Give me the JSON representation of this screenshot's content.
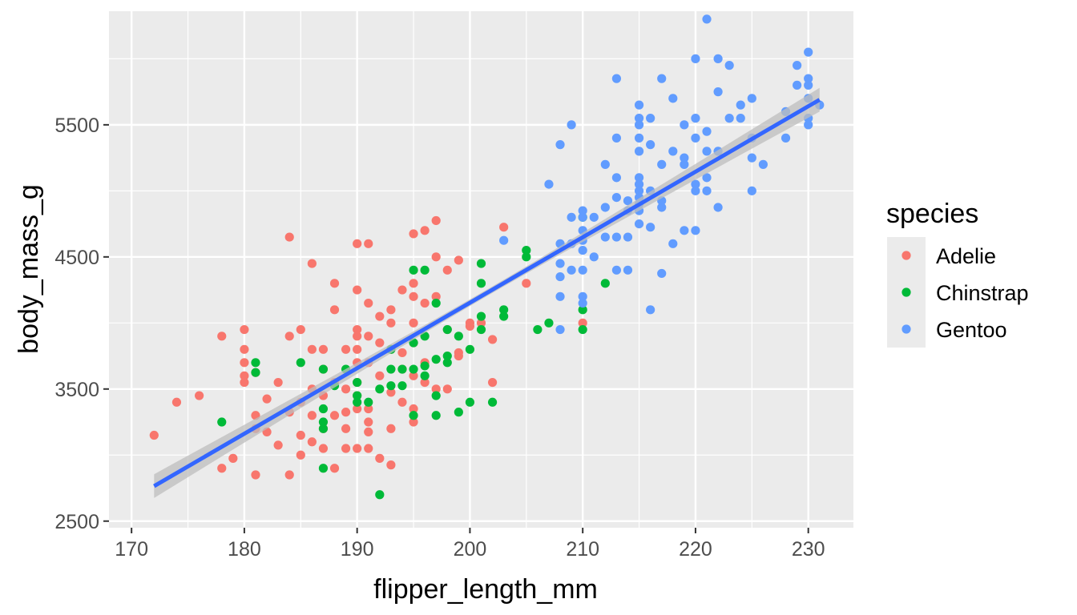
{
  "chart_data": {
    "type": "scatter",
    "xlabel": "flipper_length_mm",
    "ylabel": "body_mass_g",
    "xlim": [
      168,
      234
    ],
    "ylim": [
      2450,
      6360
    ],
    "x_ticks": [
      170,
      180,
      190,
      200,
      210,
      220,
      230
    ],
    "y_ticks": [
      2500,
      3500,
      4500,
      5500
    ],
    "grid": true,
    "legend": {
      "title": "species",
      "position": "right"
    },
    "colors": {
      "Adelie": "#F8766D",
      "Chinstrap": "#00BA38",
      "Gentoo": "#619CFF",
      "trend": "#3366FF",
      "band": "#bdbdbd",
      "panel": "#ebebeb"
    },
    "series": [
      {
        "name": "Adelie",
        "points": [
          [
            172,
            3150
          ],
          [
            174,
            3400
          ],
          [
            176,
            3450
          ],
          [
            178,
            3900
          ],
          [
            178,
            2900
          ],
          [
            179,
            2975
          ],
          [
            180,
            3950
          ],
          [
            180,
            3800
          ],
          [
            180,
            3700
          ],
          [
            180,
            3600
          ],
          [
            180,
            3550
          ],
          [
            181,
            3300
          ],
          [
            181,
            3200
          ],
          [
            181,
            2850
          ],
          [
            181,
            3625
          ],
          [
            182,
            3425
          ],
          [
            182,
            3175
          ],
          [
            183,
            3550
          ],
          [
            183,
            3075
          ],
          [
            184,
            4650
          ],
          [
            184,
            3900
          ],
          [
            184,
            3325
          ],
          [
            184,
            2850
          ],
          [
            185,
            3950
          ],
          [
            185,
            3400
          ],
          [
            185,
            3150
          ],
          [
            185,
            3000
          ],
          [
            186,
            4450
          ],
          [
            186,
            3800
          ],
          [
            186,
            3500
          ],
          [
            186,
            3300
          ],
          [
            186,
            3100
          ],
          [
            187,
            3800
          ],
          [
            187,
            3650
          ],
          [
            187,
            3450
          ],
          [
            187,
            3200
          ],
          [
            187,
            3050
          ],
          [
            188,
            4300
          ],
          [
            188,
            4100
          ],
          [
            188,
            3550
          ],
          [
            188,
            3300
          ],
          [
            188,
            2900
          ],
          [
            189,
            3800
          ],
          [
            189,
            3500
          ],
          [
            189,
            3325
          ],
          [
            189,
            3200
          ],
          [
            189,
            3050
          ],
          [
            190,
            4600
          ],
          [
            190,
            4250
          ],
          [
            190,
            3950
          ],
          [
            190,
            3900
          ],
          [
            190,
            3800
          ],
          [
            190,
            3700
          ],
          [
            190,
            3550
          ],
          [
            190,
            3450
          ],
          [
            190,
            3350
          ],
          [
            190,
            3050
          ],
          [
            191,
            4600
          ],
          [
            191,
            4150
          ],
          [
            191,
            3900
          ],
          [
            191,
            3700
          ],
          [
            191,
            3350
          ],
          [
            191,
            3250
          ],
          [
            191,
            3050
          ],
          [
            191,
            3175
          ],
          [
            192,
            4050
          ],
          [
            192,
            3850
          ],
          [
            192,
            3600
          ],
          [
            192,
            2975
          ],
          [
            193,
            4100
          ],
          [
            193,
            4000
          ],
          [
            193,
            3800
          ],
          [
            193,
            3475
          ],
          [
            193,
            3200
          ],
          [
            193,
            2925
          ],
          [
            194,
            4250
          ],
          [
            194,
            3775
          ],
          [
            194,
            3650
          ],
          [
            194,
            3400
          ],
          [
            195,
            4675
          ],
          [
            195,
            4300
          ],
          [
            195,
            4200
          ],
          [
            195,
            4000
          ],
          [
            195,
            3850
          ],
          [
            195,
            3600
          ],
          [
            195,
            3350
          ],
          [
            195,
            3250
          ],
          [
            196,
            4700
          ],
          [
            196,
            4150
          ],
          [
            196,
            3700
          ],
          [
            196,
            3550
          ],
          [
            197,
            4775
          ],
          [
            197,
            4500
          ],
          [
            197,
            4200
          ],
          [
            197,
            3500
          ],
          [
            198,
            4400
          ],
          [
            198,
            3950
          ],
          [
            198,
            3500
          ],
          [
            199,
            4475
          ],
          [
            199,
            3775
          ],
          [
            199,
            3750
          ],
          [
            200,
            3975
          ],
          [
            200,
            4000
          ],
          [
            201,
            4000
          ],
          [
            202,
            3875
          ],
          [
            202,
            3550
          ],
          [
            203,
            4725
          ],
          [
            205,
            4300
          ],
          [
            210,
            4000
          ]
        ]
      },
      {
        "name": "Chinstrap",
        "points": [
          [
            178,
            3250
          ],
          [
            181,
            3700
          ],
          [
            181,
            3625
          ],
          [
            185,
            3700
          ],
          [
            187,
            3650
          ],
          [
            187,
            3350
          ],
          [
            187,
            3250
          ],
          [
            187,
            3200
          ],
          [
            187,
            2900
          ],
          [
            188,
            3525
          ],
          [
            189,
            3650
          ],
          [
            190,
            3550
          ],
          [
            190,
            3450
          ],
          [
            190,
            3400
          ],
          [
            191,
            3400
          ],
          [
            192,
            3500
          ],
          [
            192,
            2700
          ],
          [
            193,
            3800
          ],
          [
            193,
            3650
          ],
          [
            193,
            3525
          ],
          [
            194,
            3650
          ],
          [
            194,
            3525
          ],
          [
            195,
            4400
          ],
          [
            195,
            3650
          ],
          [
            195,
            3300
          ],
          [
            195,
            3850
          ],
          [
            196,
            4400
          ],
          [
            196,
            3900
          ],
          [
            196,
            3675
          ],
          [
            196,
            3600
          ],
          [
            197,
            4150
          ],
          [
            197,
            3725
          ],
          [
            197,
            3450
          ],
          [
            197,
            3300
          ],
          [
            198,
            3950
          ],
          [
            198,
            3750
          ],
          [
            198,
            3700
          ],
          [
            199,
            3900
          ],
          [
            199,
            3325
          ],
          [
            200,
            3800
          ],
          [
            200,
            3400
          ],
          [
            201,
            4450
          ],
          [
            201,
            4300
          ],
          [
            201,
            3950
          ],
          [
            201,
            4050
          ],
          [
            202,
            3400
          ],
          [
            203,
            4100
          ],
          [
            203,
            4050
          ],
          [
            205,
            4550
          ],
          [
            205,
            4500
          ],
          [
            206,
            3950
          ],
          [
            207,
            4000
          ],
          [
            210,
            4800
          ],
          [
            210,
            4100
          ],
          [
            210,
            3950
          ],
          [
            212,
            4300
          ]
        ]
      },
      {
        "name": "Gentoo",
        "points": [
          [
            203,
            4625
          ],
          [
            207,
            5050
          ],
          [
            208,
            5350
          ],
          [
            208,
            4600
          ],
          [
            208,
            4450
          ],
          [
            208,
            4350
          ],
          [
            208,
            4200
          ],
          [
            208,
            3950
          ],
          [
            209,
            5500
          ],
          [
            209,
            4800
          ],
          [
            209,
            4600
          ],
          [
            209,
            4400
          ],
          [
            210,
            4850
          ],
          [
            210,
            4800
          ],
          [
            210,
            4700
          ],
          [
            210,
            4625
          ],
          [
            210,
            4550
          ],
          [
            210,
            4400
          ],
          [
            210,
            4200
          ],
          [
            210,
            4150
          ],
          [
            211,
            4800
          ],
          [
            211,
            4500
          ],
          [
            212,
            5200
          ],
          [
            212,
            4875
          ],
          [
            212,
            4650
          ],
          [
            213,
            5850
          ],
          [
            213,
            5400
          ],
          [
            213,
            5100
          ],
          [
            213,
            4950
          ],
          [
            213,
            4650
          ],
          [
            213,
            4400
          ],
          [
            214,
            4925
          ],
          [
            214,
            4850
          ],
          [
            214,
            4650
          ],
          [
            214,
            4400
          ],
          [
            215,
            5650
          ],
          [
            215,
            5550
          ],
          [
            215,
            5500
          ],
          [
            215,
            5400
          ],
          [
            215,
            5300
          ],
          [
            215,
            5100
          ],
          [
            215,
            5050
          ],
          [
            215,
            5000
          ],
          [
            215,
            4950
          ],
          [
            215,
            4900
          ],
          [
            215,
            4850
          ],
          [
            215,
            4750
          ],
          [
            216,
            5550
          ],
          [
            216,
            5350
          ],
          [
            216,
            5000
          ],
          [
            216,
            4725
          ],
          [
            216,
            4100
          ],
          [
            217,
            5850
          ],
          [
            217,
            5200
          ],
          [
            217,
            4925
          ],
          [
            217,
            4875
          ],
          [
            217,
            4375
          ],
          [
            218,
            5700
          ],
          [
            218,
            5300
          ],
          [
            218,
            4600
          ],
          [
            219,
            5500
          ],
          [
            219,
            5250
          ],
          [
            219,
            5200
          ],
          [
            219,
            4700
          ],
          [
            220,
            6000
          ],
          [
            220,
            5550
          ],
          [
            220,
            5400
          ],
          [
            220,
            5050
          ],
          [
            220,
            5000
          ],
          [
            220,
            4700
          ],
          [
            221,
            6300
          ],
          [
            221,
            5450
          ],
          [
            221,
            5300
          ],
          [
            221,
            5100
          ],
          [
            221,
            5000
          ],
          [
            222,
            6000
          ],
          [
            222,
            5750
          ],
          [
            222,
            5300
          ],
          [
            222,
            4875
          ],
          [
            223,
            5950
          ],
          [
            223,
            5550
          ],
          [
            224,
            5650
          ],
          [
            224,
            5550
          ],
          [
            225,
            5700
          ],
          [
            225,
            5400
          ],
          [
            225,
            5250
          ],
          [
            225,
            5000
          ],
          [
            226,
            5200
          ],
          [
            228,
            5600
          ],
          [
            228,
            5400
          ],
          [
            229,
            5950
          ],
          [
            229,
            5800
          ],
          [
            230,
            6050
          ],
          [
            230,
            5850
          ],
          [
            230,
            5800
          ],
          [
            230,
            5700
          ],
          [
            230,
            5550
          ],
          [
            230,
            5500
          ],
          [
            231,
            5650
          ]
        ]
      }
    ],
    "trend_line": {
      "method": "lm",
      "x_start": 172,
      "x_end": 231,
      "y_start": 2765,
      "y_end": 5690,
      "se_halfwidth_ends": 90,
      "se_halfwidth_mid": 25
    }
  }
}
